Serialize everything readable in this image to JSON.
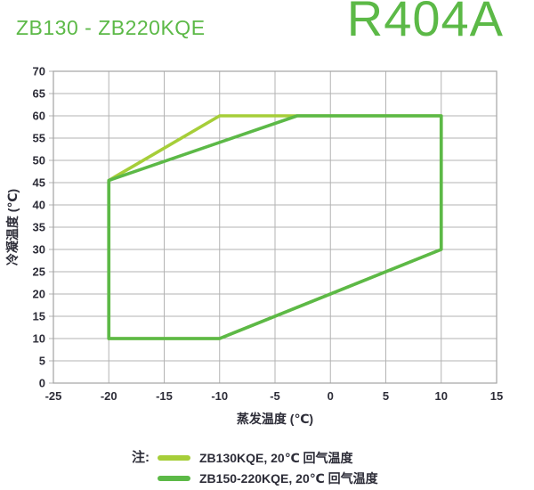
{
  "header": {
    "title": "ZB130 - ZB220KQE",
    "refrigerant": "R404A"
  },
  "colors": {
    "accent_green": "#5cb947",
    "series_light_green": "#a6ce39",
    "grid": "#b3b3b3",
    "axis": "#a3a3a3",
    "text": "#2d2d38"
  },
  "chart_data": {
    "type": "line",
    "title": "",
    "xlabel": "蒸发温度 (℃)",
    "ylabel": "冷凝温度 (℃)",
    "xlim": [
      -25,
      15
    ],
    "ylim": [
      0,
      70
    ],
    "x_ticks": [
      -25,
      -20,
      -15,
      -10,
      -5,
      0,
      5,
      10,
      15
    ],
    "y_ticks": [
      0,
      5,
      10,
      15,
      20,
      25,
      30,
      35,
      40,
      45,
      50,
      55,
      60,
      65,
      70
    ],
    "grid": true,
    "legend_position": "bottom",
    "series": [
      {
        "name": "ZB130KQE, 20℃ 回气温度",
        "color": "#a6ce39",
        "closed": true,
        "points": [
          [
            -20,
            10
          ],
          [
            -20,
            45.5
          ],
          [
            -10,
            60
          ],
          [
            10,
            60
          ],
          [
            10,
            30
          ],
          [
            -10,
            10
          ]
        ]
      },
      {
        "name": "ZB150-220KQE, 20℃ 回气温度",
        "color": "#5cb947",
        "closed": true,
        "points": [
          [
            -20,
            10
          ],
          [
            -20,
            45.5
          ],
          [
            -3,
            60
          ],
          [
            10,
            60
          ],
          [
            10,
            30
          ],
          [
            -10,
            10
          ]
        ]
      }
    ]
  },
  "legend": {
    "note_label": "注:",
    "entries": [
      {
        "label": "ZB130KQE, 20℃ 回气温度",
        "color": "#a6ce39"
      },
      {
        "label": "ZB150-220KQE, 20℃ 回气温度",
        "color": "#5cb947"
      }
    ]
  }
}
